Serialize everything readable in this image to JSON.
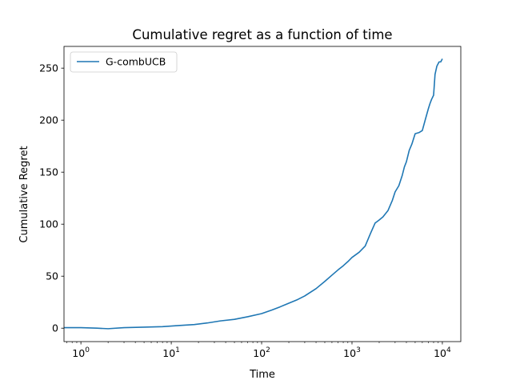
{
  "chart_data": {
    "type": "line",
    "title": "Cumulative regret as a function of time",
    "xlabel": "Time",
    "ylabel": "Cumulative Regret",
    "xscale": "log",
    "xlim": [
      0.65,
      16000
    ],
    "ylim": [
      -12.9,
      270.9
    ],
    "grid": false,
    "legend": {
      "placement": "top-left"
    },
    "x_ticks": [
      {
        "value": 1,
        "base": "10",
        "exp": "0"
      },
      {
        "value": 10,
        "base": "10",
        "exp": "1"
      },
      {
        "value": 100,
        "base": "10",
        "exp": "2"
      },
      {
        "value": 1000,
        "base": "10",
        "exp": "3"
      },
      {
        "value": 10000,
        "base": "10",
        "exp": "4"
      }
    ],
    "y_ticks": [
      {
        "value": 0,
        "label": "0"
      },
      {
        "value": 50,
        "label": "50"
      },
      {
        "value": 100,
        "label": "100"
      },
      {
        "value": 150,
        "label": "150"
      },
      {
        "value": 200,
        "label": "200"
      },
      {
        "value": 250,
        "label": "250"
      }
    ],
    "series": [
      {
        "name": "G-combUCB",
        "color": "#1f77b4",
        "x": [
          0.65,
          1,
          1.5,
          2,
          3,
          5,
          8,
          12,
          18,
          25,
          35,
          50,
          70,
          100,
          130,
          160,
          200,
          250,
          300,
          400,
          500,
          600,
          700,
          800,
          900,
          1000,
          1200,
          1400,
          1600,
          1800,
          2000,
          2200,
          2500,
          2800,
          3000,
          3300,
          3600,
          3800,
          4000,
          4300,
          4600,
          5000,
          5500,
          6000,
          6500,
          7000,
          7300,
          7600,
          8000,
          8300,
          8700,
          9200,
          9600,
          10000
        ],
        "y": [
          0.5,
          0.5,
          0,
          -0.5,
          0.5,
          1,
          1.5,
          2.5,
          3.5,
          5,
          7,
          8.5,
          11,
          14,
          17.5,
          20.5,
          24,
          27.5,
          31,
          38,
          45,
          51,
          56,
          60,
          64,
          68,
          73,
          79,
          91,
          101,
          104,
          107,
          113,
          123,
          131,
          137,
          147,
          155,
          160,
          171,
          177,
          187,
          188,
          190,
          201,
          211,
          216,
          220,
          224,
          244,
          252,
          256,
          256,
          259
        ]
      }
    ]
  }
}
